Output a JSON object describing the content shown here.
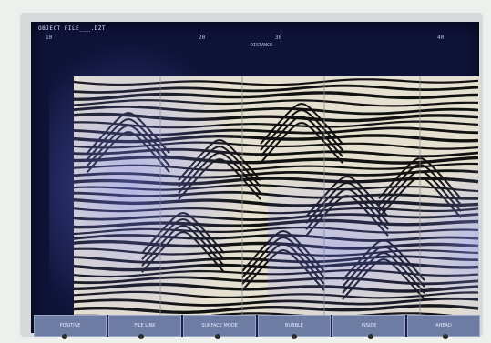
{
  "window": {
    "title": "OBJECT FILE___.DZT"
  },
  "axis": {
    "ticks": [
      "10",
      "20",
      "30",
      "40"
    ],
    "caption": "DISTANCE"
  },
  "soft_keys": [
    {
      "label": "POSITIVE"
    },
    {
      "label": "FILE LINK"
    },
    {
      "label": "SURFACE MODE"
    },
    {
      "label": "BUBBLE"
    },
    {
      "label": "INSIDE"
    },
    {
      "label": "AHEAD"
    }
  ],
  "colors": {
    "screen_bg": "#0f1338",
    "radar_light": "#e6e0d0",
    "radar_dark": "#111111",
    "soft_key": "#6d7ca3",
    "glare": "#7d86ff"
  }
}
